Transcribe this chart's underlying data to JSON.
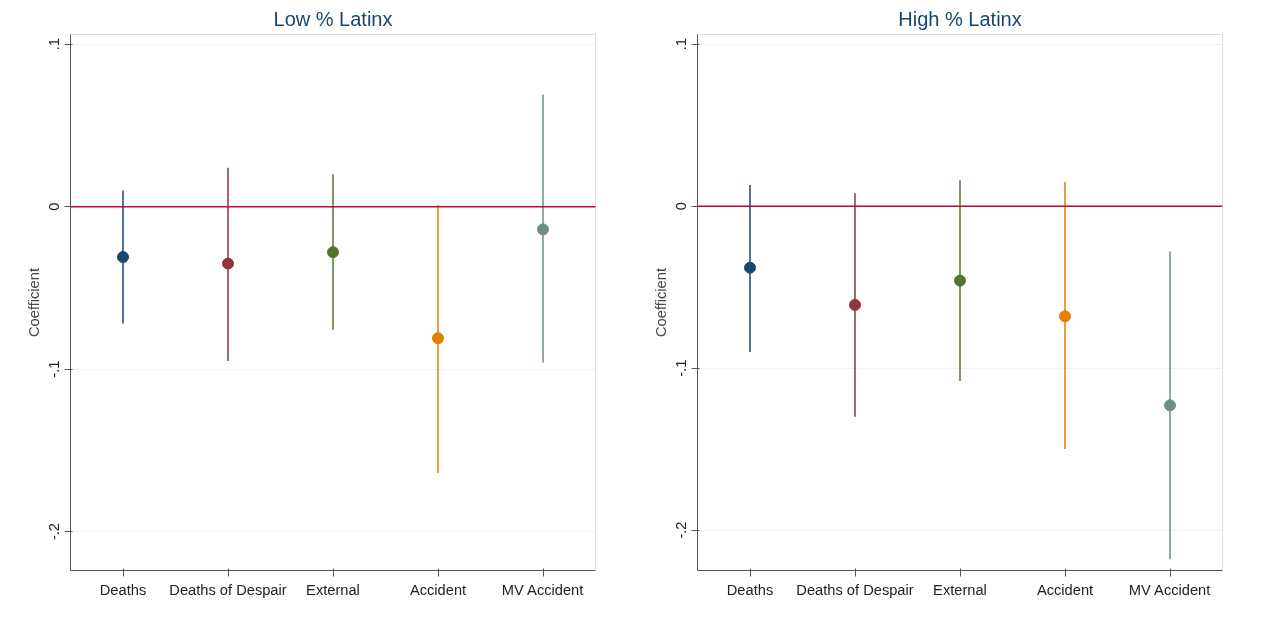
{
  "chart_data": [
    {
      "type": "scatter",
      "title": "Low % Latinx",
      "ylabel": "Coefficient",
      "categories": [
        "Deaths",
        "Deaths of Despair",
        "External",
        "Accident",
        "MV Accident"
      ],
      "values": [
        -0.031,
        -0.035,
        -0.028,
        -0.081,
        -0.014
      ],
      "errors": [
        [
          -0.072,
          0.01
        ],
        [
          -0.095,
          0.024
        ],
        [
          -0.076,
          0.02
        ],
        [
          -0.164,
          0.001
        ],
        [
          -0.096,
          0.069
        ]
      ],
      "colors": [
        "#1a476f",
        "#90353b",
        "#55752f",
        "#e37e00",
        "#6e8e84"
      ],
      "marker": "circle",
      "grid": "y",
      "ylim": [
        -0.224,
        0.106
      ],
      "yticks": [
        {
          "value": -0.2,
          "label": "-.2"
        },
        {
          "value": -0.1,
          "label": "-.1"
        },
        0,
        {
          "value": 0.1,
          "label": ".1"
        }
      ],
      "ref_lines": [
        {
          "axis": "y",
          "value": 0,
          "color": "#c10534"
        }
      ]
    },
    {
      "type": "scatter",
      "title": "High % Latinx",
      "ylabel": "Coefficient",
      "categories": [
        "Deaths",
        "Deaths of Despair",
        "External",
        "Accident",
        "MV Accident"
      ],
      "values": [
        -0.038,
        -0.061,
        -0.046,
        -0.068,
        -0.123
      ],
      "errors": [
        [
          -0.09,
          0.013
        ],
        [
          -0.13,
          0.008
        ],
        [
          -0.108,
          0.016
        ],
        [
          -0.15,
          0.015
        ],
        [
          -0.218,
          -0.028
        ]
      ],
      "colors": [
        "#1a476f",
        "#90353b",
        "#55752f",
        "#e37e00",
        "#6e8e84"
      ],
      "marker": "circle",
      "grid": "y",
      "ylim": [
        -0.225,
        0.106
      ],
      "yticks": [
        {
          "value": -0.2,
          "label": "-.2"
        },
        {
          "value": -0.1,
          "label": "-.1"
        },
        0,
        {
          "value": 0.1,
          "label": ".1"
        }
      ],
      "ref_lines": [
        {
          "axis": "y",
          "value": 0,
          "color": "#c10534"
        }
      ]
    }
  ]
}
